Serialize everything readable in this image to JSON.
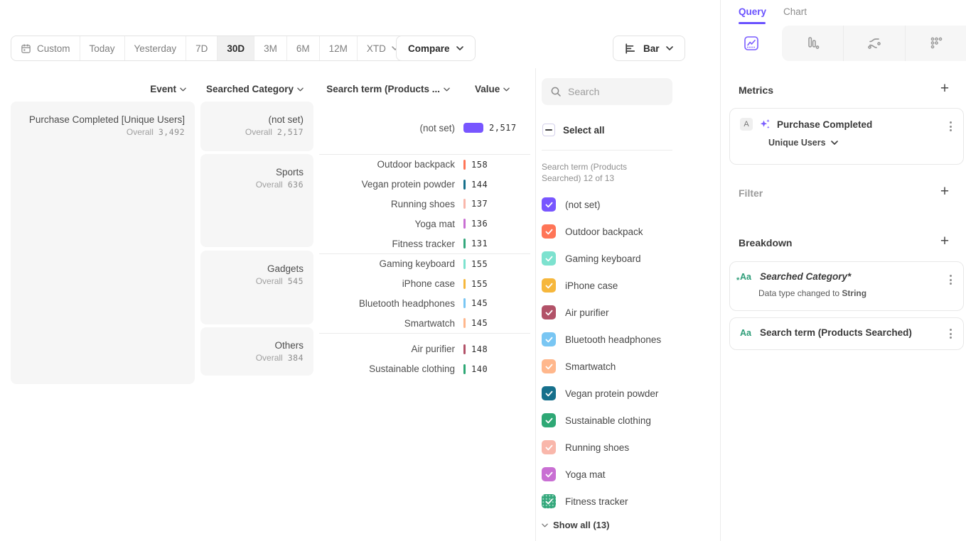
{
  "toolbar": {
    "date_ranges": [
      {
        "label": "Custom",
        "icon": "calendar"
      },
      {
        "label": "Today"
      },
      {
        "label": "Yesterday"
      },
      {
        "label": "7D"
      },
      {
        "label": "30D",
        "active": true
      },
      {
        "label": "3M"
      },
      {
        "label": "6M"
      },
      {
        "label": "12M"
      },
      {
        "label": "XTD",
        "chevron": true
      }
    ],
    "compare_label": "Compare",
    "chart_type_label": "Bar"
  },
  "table": {
    "headers": {
      "event": "Event",
      "category": "Searched Category",
      "term": "Search term (Products ...",
      "value": "Value"
    },
    "overall_label": "Overall",
    "event": {
      "name": "Purchase Completed [Unique Users]",
      "overall": "3,492"
    },
    "groups": [
      {
        "category": "(not set)",
        "overall": "2,517",
        "rows": [
          {
            "term": "(not set)",
            "value": "2,517",
            "num": 2517,
            "color": "#7856FF"
          }
        ]
      },
      {
        "category": "Sports",
        "overall": "636",
        "rows": [
          {
            "term": "Outdoor backpack",
            "value": "158",
            "num": 158,
            "color": "#FF7557"
          },
          {
            "term": "Vegan protein powder",
            "value": "144",
            "num": 144,
            "color": "#16708C"
          },
          {
            "term": "Running shoes",
            "value": "137",
            "num": 137,
            "color": "#F9B7AB"
          },
          {
            "term": "Yoga mat",
            "value": "136",
            "num": 136,
            "color": "#C96FD3"
          },
          {
            "term": "Fitness tracker",
            "value": "131",
            "num": 131,
            "color": "#34A87C"
          }
        ]
      },
      {
        "category": "Gadgets",
        "overall": "545",
        "rows": [
          {
            "term": "Gaming keyboard",
            "value": "155",
            "num": 155,
            "color": "#7DE2CF"
          },
          {
            "term": "iPhone case",
            "value": "155",
            "num": 155,
            "color": "#F6B73C"
          },
          {
            "term": "Bluetooth headphones",
            "value": "145",
            "num": 145,
            "color": "#79C6F3"
          },
          {
            "term": "Smartwatch",
            "value": "145",
            "num": 145,
            "color": "#FFB78C"
          }
        ]
      },
      {
        "category": "Others",
        "overall": "384",
        "rows": [
          {
            "term": "Air purifier",
            "value": "148",
            "num": 148,
            "color": "#B25268"
          },
          {
            "term": "Sustainable clothing",
            "value": "140",
            "num": 140,
            "color": "#2EA875"
          }
        ]
      }
    ]
  },
  "legend": {
    "search_placeholder": "Search",
    "select_all_label": "Select all",
    "caption": "Search term (Products Searched) 12 of 13",
    "items": [
      {
        "label": "(not set)",
        "color": "#7856FF",
        "checked": true
      },
      {
        "label": "Outdoor backpack",
        "color": "#FF7557",
        "checked": true
      },
      {
        "label": "Gaming keyboard",
        "color": "#7DE2CF",
        "checked": true
      },
      {
        "label": "iPhone case",
        "color": "#F6B73C",
        "checked": true
      },
      {
        "label": "Air purifier",
        "color": "#B25268",
        "checked": true
      },
      {
        "label": "Bluetooth headphones",
        "color": "#79C6F3",
        "checked": true
      },
      {
        "label": "Smartwatch",
        "color": "#FFB78C",
        "checked": true
      },
      {
        "label": "Vegan protein powder",
        "color": "#16708C",
        "checked": true
      },
      {
        "label": "Sustainable clothing",
        "color": "#2EA875",
        "checked": true
      },
      {
        "label": "Running shoes",
        "color": "#F9B7AB",
        "checked": true
      },
      {
        "label": "Yoga mat",
        "color": "#C96FD3",
        "checked": true
      },
      {
        "label": "Fitness tracker",
        "color": "#34A87C",
        "checked": true,
        "pattern": "dots"
      }
    ],
    "show_all_label": "Show all (13)"
  },
  "query_panel": {
    "tabs": {
      "query": "Query",
      "chart": "Chart"
    },
    "metrics": {
      "heading": "Metrics",
      "badge": "A",
      "event_name": "Purchase Completed",
      "measurement": "Unique Users"
    },
    "filter": {
      "heading": "Filter"
    },
    "breakdown": {
      "heading": "Breakdown",
      "items": [
        {
          "label": "Searched Category*",
          "modified": true,
          "subtext": "Data type changed to ",
          "subtext_emphasis": "String"
        },
        {
          "label": "Search term (Products Searched)",
          "modified": false
        }
      ]
    }
  },
  "accent_colors": {
    "primary_purple": "#6A52FF",
    "bar_purple": "#7856FF",
    "string_green": "#2E9D78"
  },
  "chart_data": {
    "type": "bar",
    "title": "Purchase Completed [Unique Users]",
    "value_label": "Value",
    "overall_total": 3492,
    "groups": [
      {
        "category": "(not set)",
        "overall": 2517,
        "terms": [
          {
            "term": "(not set)",
            "value": 2517
          }
        ]
      },
      {
        "category": "Sports",
        "overall": 636,
        "terms": [
          {
            "term": "Outdoor backpack",
            "value": 158
          },
          {
            "term": "Vegan protein powder",
            "value": 144
          },
          {
            "term": "Running shoes",
            "value": 137
          },
          {
            "term": "Yoga mat",
            "value": 136
          },
          {
            "term": "Fitness tracker",
            "value": 131
          }
        ]
      },
      {
        "category": "Gadgets",
        "overall": 545,
        "terms": [
          {
            "term": "Gaming keyboard",
            "value": 155
          },
          {
            "term": "iPhone case",
            "value": 155
          },
          {
            "term": "Bluetooth headphones",
            "value": 145
          },
          {
            "term": "Smartwatch",
            "value": 145
          }
        ]
      },
      {
        "category": "Others",
        "overall": 384,
        "terms": [
          {
            "term": "Air purifier",
            "value": 148
          },
          {
            "term": "Sustainable clothing",
            "value": 140
          }
        ]
      }
    ]
  }
}
